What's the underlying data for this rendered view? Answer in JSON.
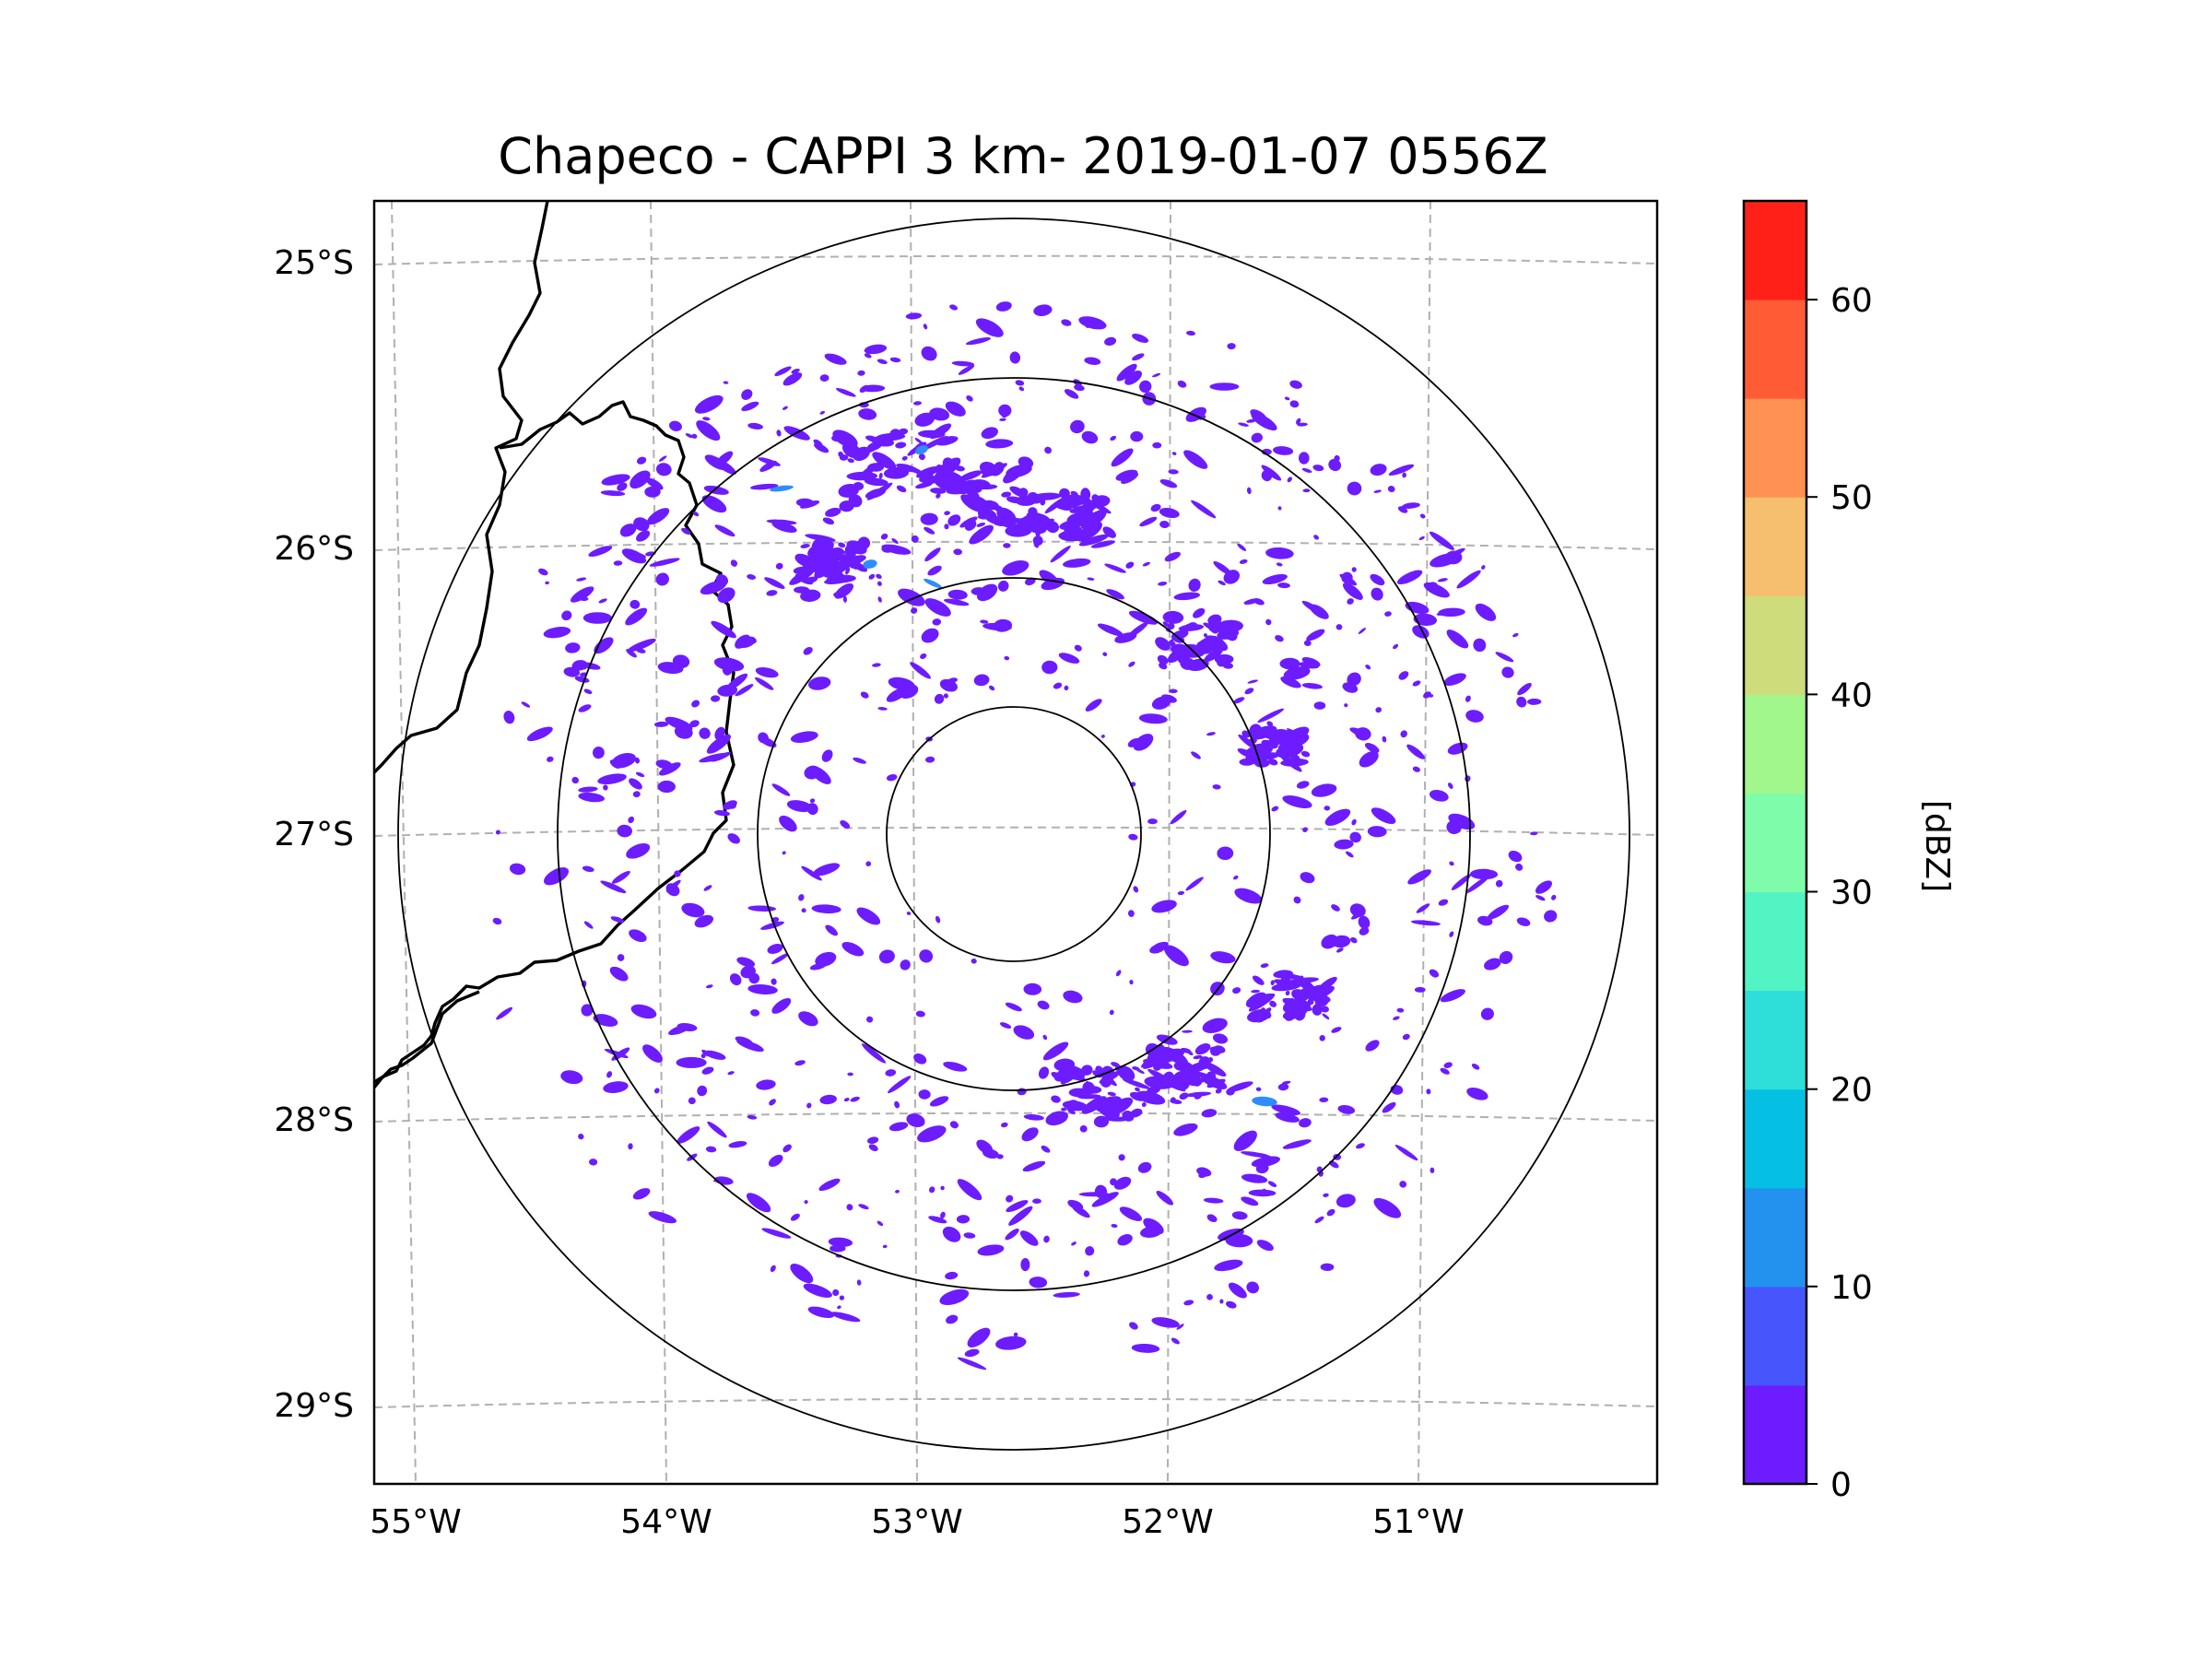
{
  "title": "Chapeco - CAPPI 3 km- 2019-01-07 0556Z",
  "map": {
    "lat_labels": [
      "25°S",
      "26°S",
      "27°S",
      "28°S",
      "29°S"
    ],
    "lon_labels": [
      "55°W",
      "54°W",
      "53°W",
      "52°W",
      "51°W"
    ],
    "radar_center": {
      "lat": -27.02,
      "lon": -52.6
    },
    "range_rings": 4,
    "echo_color": "#6c1cff",
    "weak_echo_color": "#2f8cff",
    "border_color": "#000000",
    "grid_color": "#b0b0b0"
  },
  "colorbar": {
    "label": "[dBZ]",
    "tick_labels": [
      "0",
      "10",
      "20",
      "30",
      "40",
      "50",
      "60"
    ],
    "min": 0,
    "max": 65,
    "bins": [
      {
        "from": 0,
        "to": 5,
        "color": "#6c1cff"
      },
      {
        "from": 5,
        "to": 10,
        "color": "#4656fc"
      },
      {
        "from": 10,
        "to": 15,
        "color": "#2392ef"
      },
      {
        "from": 15,
        "to": 20,
        "color": "#06c0e4"
      },
      {
        "from": 20,
        "to": 25,
        "color": "#2ddfd8"
      },
      {
        "from": 25,
        "to": 30,
        "color": "#51f4c2"
      },
      {
        "from": 30,
        "to": 35,
        "color": "#7ffca9"
      },
      {
        "from": 35,
        "to": 40,
        "color": "#a1f68c"
      },
      {
        "from": 40,
        "to": 45,
        "color": "#cfdc7c"
      },
      {
        "from": 45,
        "to": 50,
        "color": "#f5bf6e"
      },
      {
        "from": 50,
        "to": 55,
        "color": "#ff9152"
      },
      {
        "from": 55,
        "to": 60,
        "color": "#ff5c36"
      },
      {
        "from": 60,
        "to": 65,
        "color": "#ff2118"
      }
    ]
  }
}
